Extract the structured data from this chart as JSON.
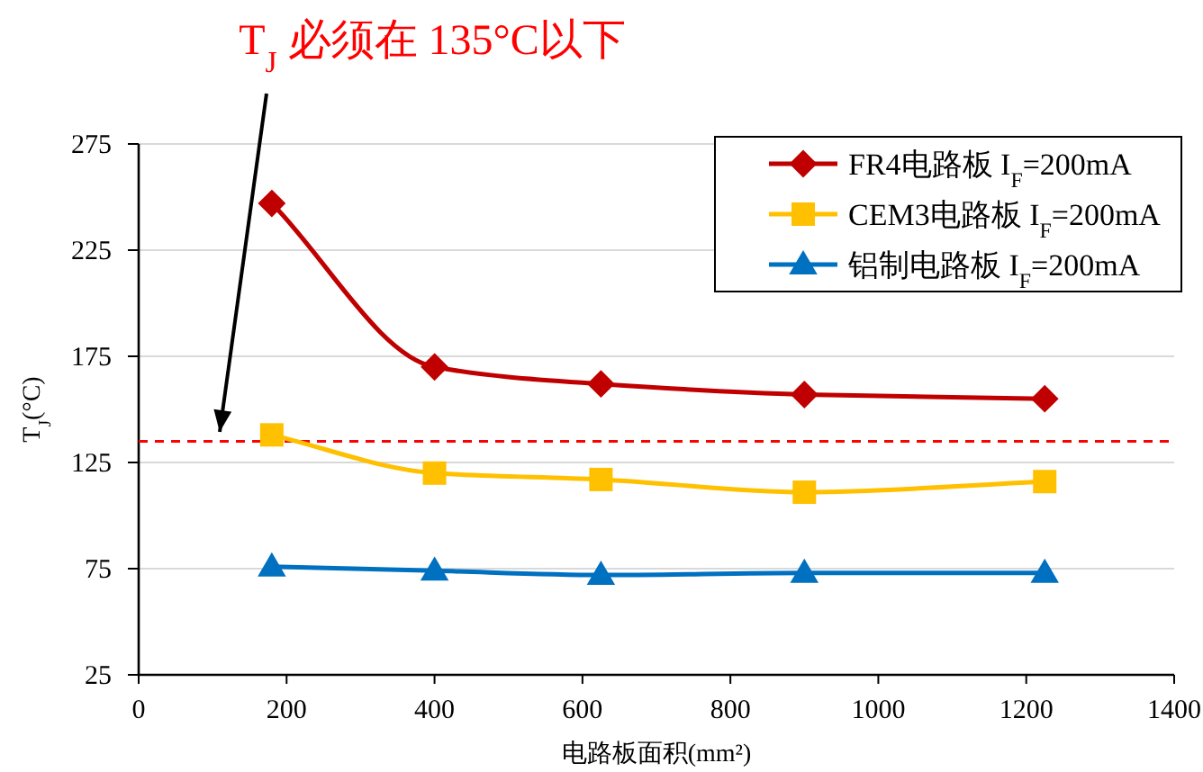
{
  "chart_data": {
    "type": "line",
    "xlabel": "电路板面积(mm²)",
    "ylabel": "T$_{J}$(°C)",
    "annotations": [
      "T$_{J}$ 必须在 135°C以下"
    ],
    "x": [
      180,
      400,
      625,
      900,
      1225
    ],
    "series": [
      {
        "name": "FR4电路板 I$_{F}$=200mA",
        "color": "#c00000",
        "marker": "diamond",
        "values": [
          247,
          170,
          162,
          157,
          155
        ]
      },
      {
        "name": "CEM3电路板 I$_{F}$=200mA",
        "color": "#ffc000",
        "marker": "square",
        "values": [
          138,
          120,
          117,
          111,
          116
        ]
      },
      {
        "name": "铝制电路板 I$_{F}$=200mA",
        "color": "#0070c0",
        "marker": "triangle",
        "values": [
          76,
          74,
          72,
          73,
          73
        ]
      }
    ],
    "xlim": [
      0,
      1400
    ],
    "xticks": [
      0,
      200,
      400,
      600,
      800,
      1000,
      1200,
      1400
    ],
    "ylim": [
      25,
      275
    ],
    "yticks": [
      25,
      75,
      125,
      175,
      225,
      275
    ],
    "ref_lines": [
      {
        "axis": "y",
        "value": 135,
        "color": "#ff0000",
        "line_style": "dashed"
      }
    ],
    "grid": "y",
    "legend": "top right",
    "line_style": "solid"
  }
}
